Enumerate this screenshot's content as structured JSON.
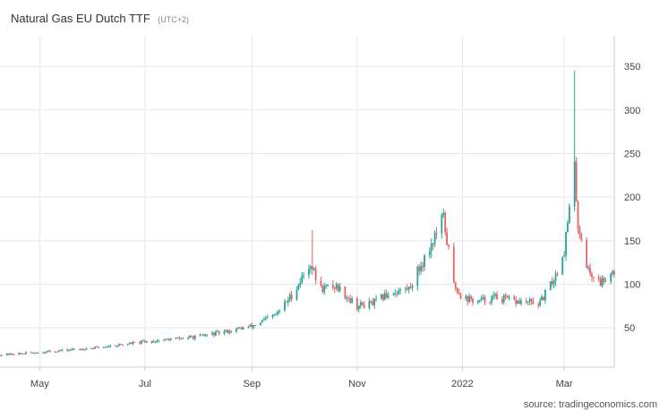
{
  "header": {
    "title": "Natural Gas EU Dutch TTF",
    "timezone": "(UTC+2)"
  },
  "footer": {
    "source": "source: tradingeconomics.com"
  },
  "chart_data": {
    "type": "candlestick",
    "title": "Natural Gas EU Dutch TTF",
    "xlabel": "",
    "ylabel": "",
    "x_tick_labels": [
      "May",
      "Jul",
      "Sep",
      "Nov",
      "2022",
      "Mar"
    ],
    "y_tick_labels": [
      "50",
      "100",
      "150",
      "200",
      "250",
      "300",
      "350"
    ],
    "y_ticks": [
      50,
      100,
      150,
      200,
      250,
      300,
      350
    ],
    "ylim": [
      5,
      385
    ],
    "xlim": [
      "2021-04-08",
      "2022-03-30"
    ],
    "x_ticks": [
      "2021-05-01",
      "2021-07-01",
      "2021-09-01",
      "2021-11-01",
      "2022-01-01",
      "2022-03-01"
    ],
    "grid": true,
    "y_axis_position": "right",
    "colors": {
      "up": "#26a69a",
      "down": "#e06464",
      "grid": "#e8e8e8",
      "axis": "#cccccc"
    },
    "keypoints": [
      {
        "date": "2021-04-08",
        "value": 19
      },
      {
        "date": "2021-05-01",
        "value": 22
      },
      {
        "date": "2021-06-01",
        "value": 27
      },
      {
        "date": "2021-07-01",
        "value": 34
      },
      {
        "date": "2021-08-01",
        "value": 40
      },
      {
        "date": "2021-08-15",
        "value": 45
      },
      {
        "date": "2021-09-01",
        "value": 52
      },
      {
        "date": "2021-09-15",
        "value": 65
      },
      {
        "date": "2021-09-25",
        "value": 90
      },
      {
        "date": "2021-10-05",
        "value": 125
      },
      {
        "date": "2021-10-10",
        "value": 95
      },
      {
        "date": "2021-10-20",
        "value": 98
      },
      {
        "date": "2021-11-01",
        "value": 75
      },
      {
        "date": "2021-11-10",
        "value": 78
      },
      {
        "date": "2021-11-20",
        "value": 90
      },
      {
        "date": "2021-12-01",
        "value": 95
      },
      {
        "date": "2021-12-10",
        "value": 130
      },
      {
        "date": "2021-12-21",
        "value": 175
      },
      {
        "date": "2021-12-27",
        "value": 100
      },
      {
        "date": "2022-01-01",
        "value": 85
      },
      {
        "date": "2022-01-10",
        "value": 80
      },
      {
        "date": "2022-01-20",
        "value": 85
      },
      {
        "date": "2022-02-01",
        "value": 80
      },
      {
        "date": "2022-02-15",
        "value": 78
      },
      {
        "date": "2022-02-24",
        "value": 110
      },
      {
        "date": "2022-03-01",
        "value": 140
      },
      {
        "date": "2022-03-07",
        "value": 230
      },
      {
        "date": "2022-03-09",
        "value": 170
      },
      {
        "date": "2022-03-15",
        "value": 115
      },
      {
        "date": "2022-03-22",
        "value": 102
      },
      {
        "date": "2022-03-28",
        "value": 115
      }
    ],
    "spikes": [
      {
        "date": "2021-10-06",
        "high": 162
      },
      {
        "date": "2021-12-21",
        "high": 187
      },
      {
        "date": "2022-03-07",
        "high": 345
      }
    ]
  }
}
